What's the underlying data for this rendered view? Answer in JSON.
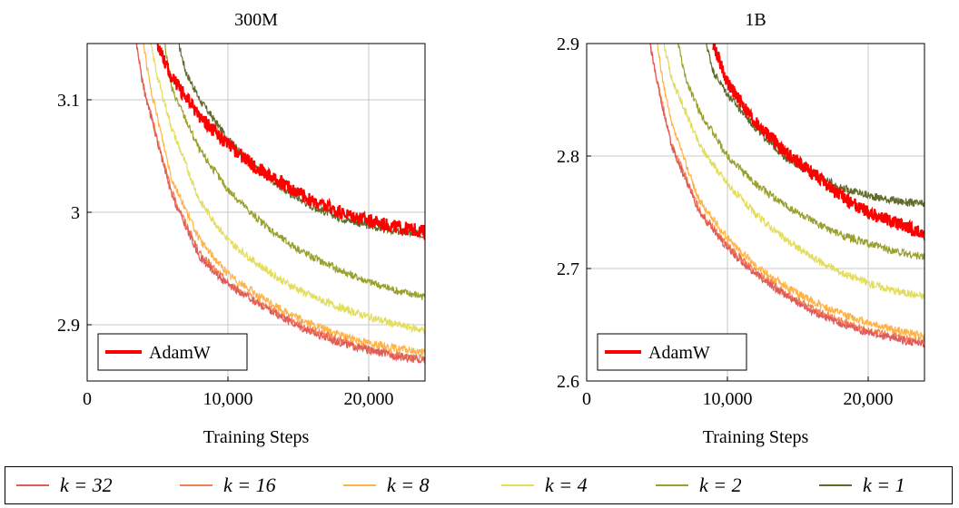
{
  "chart_data": [
    {
      "type": "line",
      "title": "300M",
      "xlabel": "Training Steps",
      "ylabel": "",
      "xlim": [
        0,
        24000
      ],
      "ylim": [
        2.85,
        3.15
      ],
      "xticks": [
        0,
        10000,
        20000
      ],
      "xtick_labels": [
        "0",
        "10,000",
        "20,000"
      ],
      "yticks": [
        2.9,
        3.0,
        3.1
      ],
      "ytick_labels": [
        "2.9",
        "3",
        "3.1"
      ],
      "grid": true,
      "legend": {
        "position": "bottom-left",
        "entries": [
          "AdamW"
        ]
      },
      "series": [
        {
          "name": "AdamW",
          "color": "#ff0000",
          "x": [
            5000,
            6000,
            8000,
            10000,
            12000,
            14000,
            16000,
            18000,
            20000,
            22000,
            24000
          ],
          "y": [
            3.15,
            3.12,
            3.085,
            3.06,
            3.04,
            3.025,
            3.01,
            3.0,
            2.993,
            2.987,
            2.983
          ]
        },
        {
          "name": "k = 32",
          "color": "#e05a5a",
          "x": [
            3500,
            4000,
            6000,
            8000,
            10000,
            12000,
            14000,
            16000,
            18000,
            20000,
            22000,
            24000
          ],
          "y": [
            3.15,
            3.11,
            3.015,
            2.96,
            2.935,
            2.92,
            2.905,
            2.893,
            2.884,
            2.877,
            2.872,
            2.868
          ]
        },
        {
          "name": "k = 16",
          "color": "#ef8250",
          "x": [
            3500,
            4000,
            6000,
            8000,
            10000,
            12000,
            14000,
            16000,
            18000,
            20000,
            22000,
            24000
          ],
          "y": [
            3.15,
            3.112,
            3.018,
            2.963,
            2.937,
            2.921,
            2.907,
            2.895,
            2.886,
            2.878,
            2.873,
            2.869
          ]
        },
        {
          "name": "k = 8",
          "color": "#ffb347",
          "x": [
            4000,
            4500,
            6000,
            8000,
            10000,
            12000,
            14000,
            16000,
            18000,
            20000,
            22000,
            24000
          ],
          "y": [
            3.15,
            3.11,
            3.03,
            2.975,
            2.945,
            2.927,
            2.912,
            2.9,
            2.891,
            2.884,
            2.879,
            2.875
          ]
        },
        {
          "name": "k = 4",
          "color": "#e3dd5c",
          "x": [
            4500,
            5000,
            6000,
            8000,
            10000,
            12000,
            14000,
            16000,
            18000,
            20000,
            22000,
            24000
          ],
          "y": [
            3.15,
            3.12,
            3.075,
            3.01,
            2.975,
            2.955,
            2.938,
            2.925,
            2.915,
            2.907,
            2.9,
            2.895
          ]
        },
        {
          "name": "k = 2",
          "color": "#9aa02e",
          "x": [
            5500,
            6000,
            8000,
            10000,
            12000,
            14000,
            16000,
            18000,
            20000,
            22000,
            24000
          ],
          "y": [
            3.15,
            3.11,
            3.055,
            3.02,
            2.995,
            2.975,
            2.96,
            2.948,
            2.938,
            2.93,
            2.925
          ]
        },
        {
          "name": "k = 1",
          "color": "#5e6b2a",
          "x": [
            6500,
            7000,
            8000,
            10000,
            12000,
            14000,
            16000,
            18000,
            20000,
            22000,
            24000
          ],
          "y": [
            3.15,
            3.125,
            3.1,
            3.065,
            3.04,
            3.02,
            3.005,
            2.995,
            2.988,
            2.983,
            2.98
          ]
        }
      ]
    },
    {
      "type": "line",
      "title": "1B",
      "xlabel": "Training Steps",
      "ylabel": "",
      "xlim": [
        0,
        24000
      ],
      "ylim": [
        2.6,
        2.9
      ],
      "xticks": [
        0,
        10000,
        20000
      ],
      "xtick_labels": [
        "0",
        "10,000",
        "20,000"
      ],
      "yticks": [
        2.6,
        2.7,
        2.8,
        2.9
      ],
      "ytick_labels": [
        "2.6",
        "2.7",
        "2.8",
        "2.9"
      ],
      "grid": true,
      "legend": {
        "position": "bottom-left",
        "entries": [
          "AdamW"
        ]
      },
      "series": [
        {
          "name": "AdamW",
          "color": "#ff0000",
          "x": [
            9000,
            10000,
            12000,
            14000,
            16000,
            18000,
            20000,
            22000,
            24000
          ],
          "y": [
            2.9,
            2.865,
            2.83,
            2.805,
            2.785,
            2.765,
            2.75,
            2.74,
            2.73
          ]
        },
        {
          "name": "k = 32",
          "color": "#e05a5a",
          "x": [
            4500,
            5000,
            6000,
            8000,
            10000,
            12000,
            14000,
            16000,
            18000,
            20000,
            22000,
            24000
          ],
          "y": [
            2.9,
            2.865,
            2.81,
            2.75,
            2.718,
            2.695,
            2.677,
            2.662,
            2.651,
            2.643,
            2.637,
            2.633
          ]
        },
        {
          "name": "k = 16",
          "color": "#ef8250",
          "x": [
            4500,
            5000,
            6000,
            8000,
            10000,
            12000,
            14000,
            16000,
            18000,
            20000,
            22000,
            24000
          ],
          "y": [
            2.9,
            2.867,
            2.812,
            2.752,
            2.72,
            2.697,
            2.679,
            2.664,
            2.653,
            2.645,
            2.639,
            2.635
          ]
        },
        {
          "name": "k = 8",
          "color": "#ffb347",
          "x": [
            5000,
            5500,
            6000,
            8000,
            10000,
            12000,
            14000,
            16000,
            18000,
            20000,
            22000,
            24000
          ],
          "y": [
            2.9,
            2.86,
            2.83,
            2.76,
            2.727,
            2.703,
            2.685,
            2.671,
            2.66,
            2.652,
            2.645,
            2.64
          ]
        },
        {
          "name": "k = 4",
          "color": "#e3dd5c",
          "x": [
            5500,
            6000,
            8000,
            10000,
            12000,
            14000,
            16000,
            18000,
            20000,
            22000,
            24000
          ],
          "y": [
            2.9,
            2.87,
            2.81,
            2.775,
            2.748,
            2.727,
            2.71,
            2.697,
            2.687,
            2.68,
            2.675
          ]
        },
        {
          "name": "k = 2",
          "color": "#9aa02e",
          "x": [
            6500,
            7000,
            8000,
            10000,
            12000,
            14000,
            16000,
            18000,
            20000,
            22000,
            24000
          ],
          "y": [
            2.9,
            2.87,
            2.84,
            2.8,
            2.775,
            2.757,
            2.742,
            2.73,
            2.722,
            2.715,
            2.71
          ]
        },
        {
          "name": "k = 1",
          "color": "#5e6b2a",
          "x": [
            8500,
            9000,
            10000,
            12000,
            14000,
            16000,
            18000,
            20000,
            22000,
            24000
          ],
          "y": [
            2.9,
            2.875,
            2.855,
            2.825,
            2.8,
            2.785,
            2.772,
            2.765,
            2.76,
            2.757
          ]
        }
      ]
    }
  ],
  "shared_legend": {
    "entries": [
      {
        "label": "k = 32",
        "color": "#e05a5a"
      },
      {
        "label": "k = 16",
        "color": "#ef8250"
      },
      {
        "label": "k = 8",
        "color": "#ffb347"
      },
      {
        "label": "k = 4",
        "color": "#e3dd5c"
      },
      {
        "label": "k = 2",
        "color": "#9aa02e"
      },
      {
        "label": "k = 1",
        "color": "#5e6b2a"
      }
    ]
  }
}
